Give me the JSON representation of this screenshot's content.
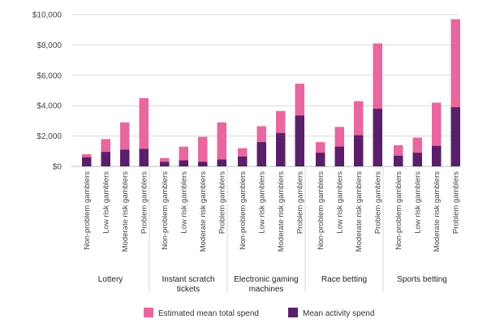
{
  "chart_data": {
    "type": "bar",
    "stacked": true,
    "ylim": [
      0,
      10000
    ],
    "yticks": [
      "$0",
      "$2,000",
      "$4,000",
      "$6,000",
      "$8,000",
      "$10,000"
    ],
    "grid": true,
    "legend_position": "bottom",
    "groups": [
      {
        "label": [
          "Lottery"
        ],
        "categories": [
          "Non-problem gamblers",
          "Low risk gamblers",
          "Moderate risk gamblers",
          "Problem gamblers"
        ],
        "mean_activity": [
          600,
          950,
          1100,
          1150
        ],
        "estimated_total": [
          800,
          1800,
          2900,
          4500
        ]
      },
      {
        "label": [
          "Instant scratch",
          "tickets"
        ],
        "categories": [
          "Non-problem gamblers",
          "Low risk gamblers",
          "Moderate risk gamblers",
          "Problem gamblers"
        ],
        "mean_activity": [
          300,
          400,
          300,
          450
        ],
        "estimated_total": [
          550,
          1300,
          1950,
          2900
        ]
      },
      {
        "label": [
          "Electronic gaming",
          "machines"
        ],
        "categories": [
          "Non-problem gamblers",
          "Low risk gamblers",
          "Moderate risk gamblers",
          "Problem gamblers"
        ],
        "mean_activity": [
          650,
          1600,
          2200,
          3350
        ],
        "estimated_total": [
          1200,
          2650,
          3650,
          5450
        ]
      },
      {
        "label": [
          "Race betting"
        ],
        "categories": [
          "Non-problem gamblers",
          "Low risk gamblers",
          "Moderate risk gamblers",
          "Problem gamblers"
        ],
        "mean_activity": [
          900,
          1300,
          2050,
          3800
        ],
        "estimated_total": [
          1600,
          2600,
          4300,
          8100
        ]
      },
      {
        "label": [
          "Sports betting"
        ],
        "categories": [
          "Non-problem gamblers",
          "Low risk gamblers",
          "Moderate risk gamblers",
          "Problem gamblers"
        ],
        "mean_activity": [
          700,
          900,
          1350,
          3900
        ],
        "estimated_total": [
          1400,
          1900,
          4200,
          9700
        ]
      }
    ],
    "series": [
      {
        "name": "Estimated mean total spend",
        "color": "#e8679f"
      },
      {
        "name": "Mean activity spend",
        "color": "#5a1f6b"
      }
    ],
    "colors": {
      "grid": "#d9d9d9",
      "axis": "#bdbdbd"
    }
  }
}
